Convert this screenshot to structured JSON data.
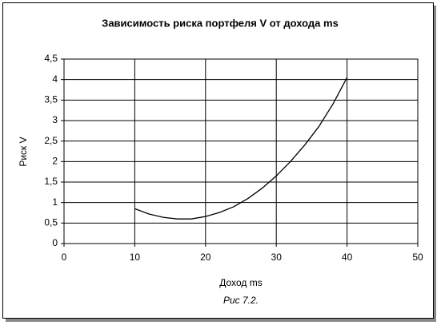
{
  "chart_data": {
    "type": "line",
    "title": "Зависимость риска портфеля V от дохода ms",
    "xlabel": "Доход ms",
    "ylabel": "Риск V",
    "caption": "Рис 7.2.",
    "x": [
      10,
      12,
      14,
      16,
      18,
      20,
      22,
      24,
      26,
      28,
      30,
      32,
      34,
      36,
      38,
      40
    ],
    "values": [
      0.85,
      0.72,
      0.64,
      0.6,
      0.6,
      0.66,
      0.76,
      0.9,
      1.1,
      1.35,
      1.65,
      2.0,
      2.4,
      2.85,
      3.4,
      4.05
    ],
    "color": "#000000",
    "xlim": [
      0,
      50
    ],
    "xticks": [
      0,
      10,
      20,
      30,
      40,
      50
    ],
    "ylim": [
      0,
      4.5
    ],
    "yticks": [
      0,
      {
        "value": 0.5,
        "label": "0,5"
      },
      1,
      {
        "value": 1.5,
        "label": "1,5"
      },
      2,
      {
        "value": 2.5,
        "label": "2,5"
      },
      3,
      {
        "value": 3.5,
        "label": "3,5"
      },
      4,
      {
        "value": 4.5,
        "label": "4,5"
      }
    ],
    "grid": true
  }
}
